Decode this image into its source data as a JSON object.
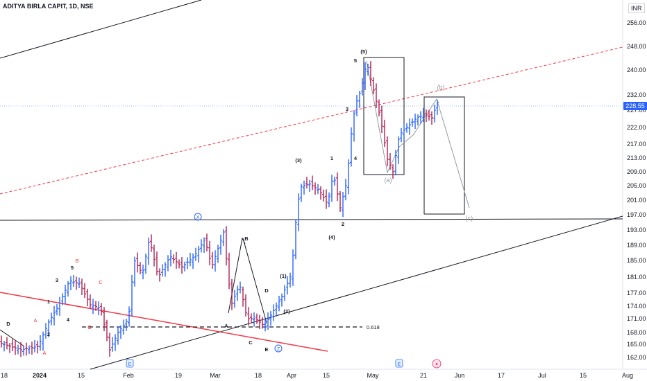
{
  "header": {
    "title": "ADITYA BIRLA CAPIT, 1D, NSE",
    "currency": "INR"
  },
  "chart_data": {
    "type": "ohlc",
    "y_ticks": [
      "256.00",
      "248.00",
      "240.00",
      "232.00",
      "227.00",
      "222.00",
      "217.00",
      "213.00",
      "209.00",
      "205.00",
      "201.00",
      "197.00",
      "193.00",
      "189.00",
      "185.00",
      "181.00",
      "177.00",
      "174.00",
      "171.00",
      "168.00",
      "165.00",
      "162.00"
    ],
    "x_ticks": [
      "18",
      "2024",
      "15",
      "Feb",
      "19",
      "Mar",
      "18",
      "Apr",
      "15",
      "May",
      "21",
      "Jun",
      "17",
      "Jul",
      "15",
      "Aug"
    ],
    "last_price": "228.55",
    "fib_label": "0.618",
    "colors": {
      "up": "#2962ff",
      "down": "#b2204f",
      "wave": "#131722",
      "red_wave": "#e53935",
      "gray": "#9598a1"
    },
    "wave_labels": {
      "black": [
        "D",
        "1",
        "3",
        "4",
        "5",
        "2",
        "B",
        "D",
        "C",
        "E",
        "(1)",
        "(2)",
        "(3)",
        "(4)",
        "1",
        "2",
        "3",
        "4",
        "5",
        "(5)"
      ],
      "red": [
        "A",
        "B",
        "C",
        "A"
      ],
      "gray": [
        "(a)",
        "(b)",
        "(c)"
      ],
      "abc_primary": [
        "A",
        "C"
      ]
    },
    "circle_labels": [
      "X",
      "Z"
    ],
    "event_icons": [
      "E",
      "E",
      "E"
    ],
    "bars_down_pct": 0.45
  }
}
